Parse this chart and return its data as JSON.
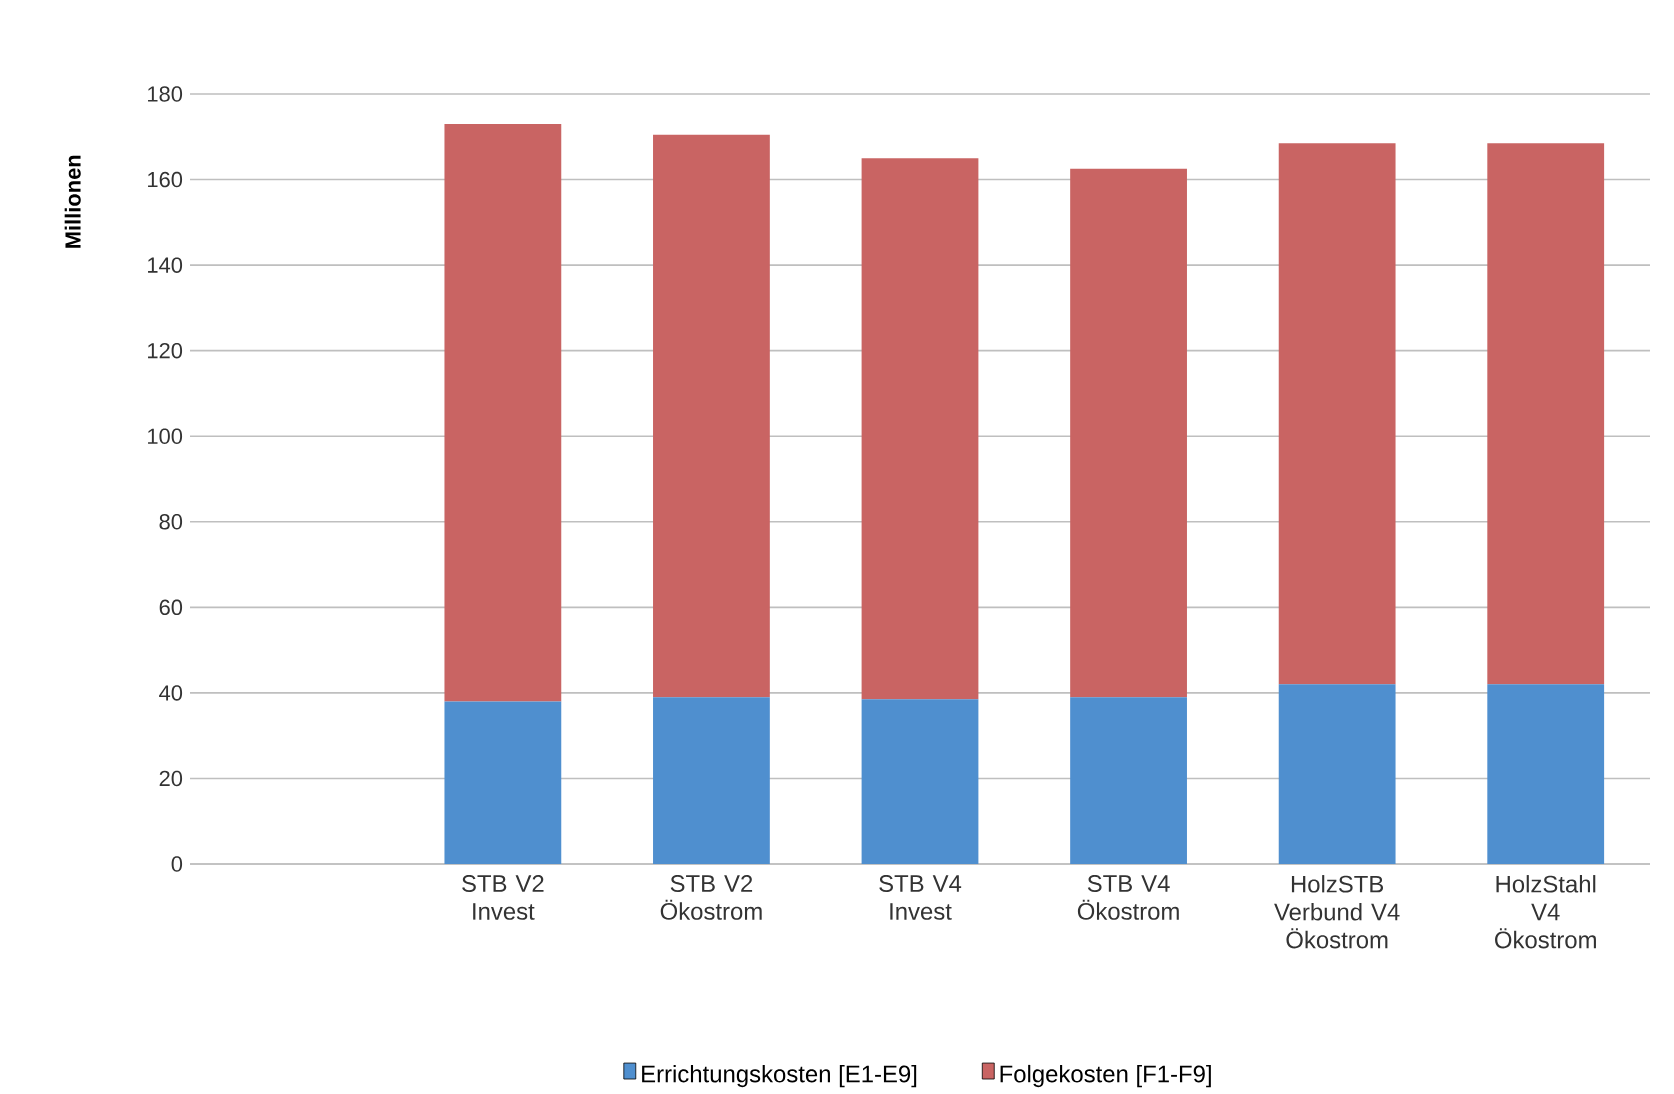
{
  "chart_data": {
    "type": "bar",
    "stacked": true,
    "ylabel": "Millionen",
    "categories": [
      null,
      "STB V2 Invest",
      "STB V2 Ökostrom",
      "STB V4 Invest",
      "STB V4 Ökostrom",
      "HolzSTB Verbund V4 Ökostrom",
      "HolzStahl V4 Ökostrom"
    ],
    "series": [
      {
        "name": "Errichtungskosten [E1-E9]",
        "color": "#4f8fcf",
        "values": [
          null,
          38,
          39,
          38.5,
          39,
          42,
          42
        ]
      },
      {
        "name": "Folgekosten [F1-F9]",
        "color": "#c96463",
        "values": [
          null,
          135,
          131.5,
          126.5,
          123.5,
          126.5,
          126.5
        ]
      }
    ],
    "ylim": [
      0,
      180
    ],
    "yticks": [
      0,
      20,
      40,
      60,
      80,
      100,
      120,
      140,
      160,
      180
    ],
    "grid": "y",
    "legend": "bottom"
  }
}
